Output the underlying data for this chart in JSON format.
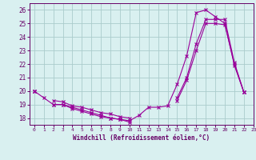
{
  "x": [
    0,
    1,
    2,
    3,
    4,
    5,
    6,
    7,
    8,
    9,
    10,
    11,
    12,
    13,
    14,
    15,
    16,
    17,
    18,
    19,
    20,
    21,
    22,
    23
  ],
  "curve1": [
    20.0,
    19.5,
    19.0,
    19.0,
    18.7,
    18.5,
    18.3,
    18.1,
    18.0,
    17.9,
    17.8,
    18.2,
    18.8,
    18.8,
    18.9,
    20.5,
    22.6,
    25.8,
    26.0,
    25.5,
    25.0,
    21.9,
    19.9,
    null
  ],
  "curve2": [
    20.0,
    null,
    19.0,
    19.0,
    18.8,
    18.6,
    18.4,
    18.2,
    18.0,
    17.9,
    17.7,
    null,
    null,
    null,
    null,
    19.5,
    21.0,
    23.5,
    25.3,
    25.3,
    25.3,
    22.1,
    19.9,
    null
  ],
  "curve3": [
    20.0,
    null,
    19.3,
    19.2,
    18.9,
    18.8,
    18.6,
    18.4,
    18.3,
    18.1,
    18.0,
    null,
    null,
    null,
    null,
    19.3,
    20.8,
    23.0,
    25.0,
    25.0,
    24.9,
    22.0,
    19.9,
    null
  ],
  "line_color": "#990099",
  "bg_color": "#d9f0f0",
  "grid_color": "#aacccc",
  "axis_color": "#660066",
  "xlabel": "Windchill (Refroidissement éolien,°C)",
  "ylim": [
    17.5,
    26.5
  ],
  "xlim": [
    -0.5,
    23
  ],
  "yticks": [
    18,
    19,
    20,
    21,
    22,
    23,
    24,
    25,
    26
  ],
  "xticks": [
    0,
    1,
    2,
    3,
    4,
    5,
    6,
    7,
    8,
    9,
    10,
    11,
    12,
    13,
    14,
    15,
    16,
    17,
    18,
    19,
    20,
    21,
    22,
    23
  ]
}
